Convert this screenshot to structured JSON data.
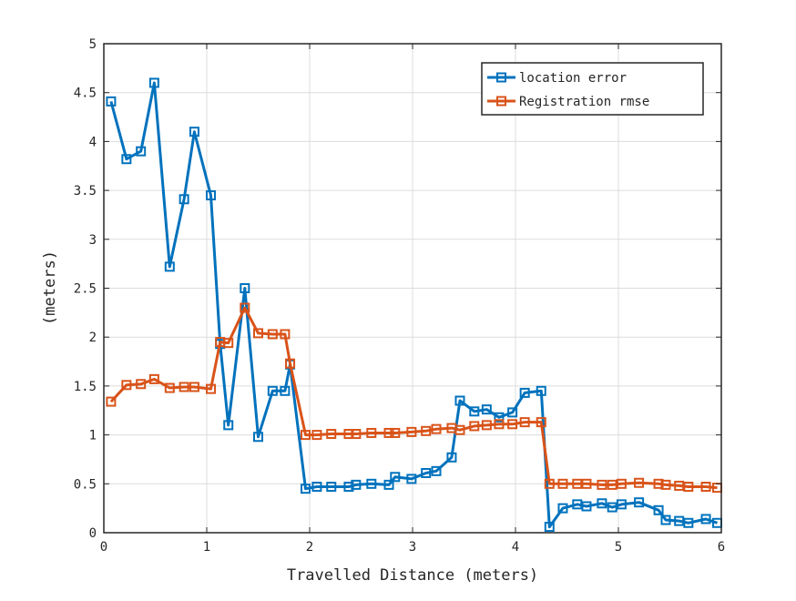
{
  "chart_data": {
    "type": "line",
    "title": "",
    "xlabel": "Travelled Distance (meters)",
    "ylabel": "(meters)",
    "xlim": [
      0,
      6
    ],
    "ylim": [
      0,
      5
    ],
    "xticks": [
      "0",
      "1",
      "2",
      "3",
      "4",
      "5",
      "6"
    ],
    "yticks": [
      "0",
      "0.5",
      "1",
      "1.5",
      "2",
      "2.5",
      "3",
      "3.5",
      "4",
      "4.5",
      "5"
    ],
    "grid": true,
    "legend_position": "top-right",
    "x": [
      0.07,
      0.22,
      0.36,
      0.49,
      0.64,
      0.78,
      0.88,
      1.04,
      1.13,
      1.21,
      1.37,
      1.5,
      1.64,
      1.76,
      1.81,
      1.96,
      2.07,
      2.21,
      2.38,
      2.45,
      2.6,
      2.77,
      2.83,
      2.99,
      3.13,
      3.23,
      3.38,
      3.46,
      3.6,
      3.72,
      3.84,
      3.97,
      4.09,
      4.25,
      4.33,
      4.46,
      4.6,
      4.69,
      4.84,
      4.94,
      5.03,
      5.2,
      5.39,
      5.46,
      5.59,
      5.68,
      5.85,
      5.96
    ],
    "series": [
      {
        "name": "location error",
        "color": "#0072BD",
        "values": [
          4.41,
          3.82,
          3.9,
          4.6,
          2.72,
          3.41,
          4.1,
          3.45,
          1.93,
          1.1,
          2.5,
          0.98,
          1.45,
          1.45,
          1.72,
          0.45,
          0.47,
          0.47,
          0.47,
          0.49,
          0.5,
          0.49,
          0.57,
          0.55,
          0.61,
          0.63,
          0.77,
          1.35,
          1.24,
          1.26,
          1.18,
          1.23,
          1.43,
          1.45,
          0.06,
          0.25,
          0.29,
          0.27,
          0.3,
          0.26,
          0.29,
          0.31,
          0.23,
          0.13,
          0.12,
          0.1,
          0.14,
          0.1
        ]
      },
      {
        "name": "Registration rmse",
        "color": "#D95319",
        "values": [
          1.34,
          1.51,
          1.52,
          1.57,
          1.48,
          1.49,
          1.49,
          1.47,
          1.95,
          1.94,
          2.3,
          2.04,
          2.03,
          2.03,
          1.73,
          1.0,
          1.0,
          1.01,
          1.01,
          1.01,
          1.02,
          1.02,
          1.02,
          1.03,
          1.04,
          1.06,
          1.07,
          1.05,
          1.09,
          1.1,
          1.11,
          1.11,
          1.13,
          1.13,
          0.5,
          0.5,
          0.5,
          0.5,
          0.49,
          0.49,
          0.5,
          0.51,
          0.5,
          0.49,
          0.48,
          0.47,
          0.47,
          0.46
        ]
      }
    ]
  }
}
